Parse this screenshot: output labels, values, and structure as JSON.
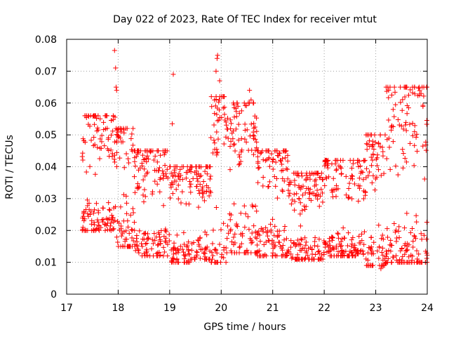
{
  "chart_data": {
    "type": "scatter",
    "title": "Day 022 of 2023, Rate Of TEC Index for receiver mtut",
    "xlabel": "GPS time / hours",
    "ylabel": "ROTI / TECUs",
    "xlim": [
      17,
      24
    ],
    "ylim": [
      0,
      0.08
    ],
    "x_ticks": [
      17,
      18,
      19,
      20,
      21,
      22,
      23,
      24
    ],
    "y_ticks": [
      0,
      0.01,
      0.02,
      0.03,
      0.04,
      0.05,
      0.06,
      0.07,
      0.08
    ],
    "x_tick_labels": [
      "17",
      "18",
      "19",
      "20",
      "21",
      "22",
      "23",
      "24"
    ],
    "y_tick_labels": [
      "0",
      "0.01",
      "0.02",
      "0.03",
      "0.04",
      "0.05",
      "0.06",
      "0.07",
      "0.08"
    ],
    "grid": true,
    "marker": "+",
    "color": "#ff0000",
    "series": [
      {
        "name": "ROTI",
        "segments": [
          {
            "x_start": 17.3,
            "x_end": 17.95,
            "y_low": 0.02,
            "y_high": 0.056,
            "center": 0.032
          },
          {
            "x_start": 17.95,
            "x_end": 18.3,
            "y_low": 0.015,
            "y_high": 0.052,
            "center": 0.035
          },
          {
            "x_start": 18.3,
            "x_end": 19.0,
            "y_low": 0.012,
            "y_high": 0.045,
            "center": 0.024
          },
          {
            "x_start": 19.0,
            "x_end": 19.4,
            "y_low": 0.01,
            "y_high": 0.04,
            "center": 0.02
          },
          {
            "x_start": 19.4,
            "x_end": 19.8,
            "y_low": 0.011,
            "y_high": 0.04,
            "center": 0.022
          },
          {
            "x_start": 19.8,
            "x_end": 20.1,
            "y_low": 0.01,
            "y_high": 0.062,
            "center": 0.03
          },
          {
            "x_start": 20.1,
            "x_end": 20.7,
            "y_low": 0.013,
            "y_high": 0.06,
            "center": 0.035
          },
          {
            "x_start": 20.7,
            "x_end": 21.3,
            "y_low": 0.012,
            "y_high": 0.045,
            "center": 0.027
          },
          {
            "x_start": 21.3,
            "x_end": 22.0,
            "y_low": 0.011,
            "y_high": 0.038,
            "center": 0.022
          },
          {
            "x_start": 22.0,
            "x_end": 22.8,
            "y_low": 0.012,
            "y_high": 0.042,
            "center": 0.023
          },
          {
            "x_start": 22.8,
            "x_end": 23.2,
            "y_low": 0.009,
            "y_high": 0.05,
            "center": 0.024
          },
          {
            "x_start": 23.2,
            "x_end": 24.0,
            "y_low": 0.01,
            "y_high": 0.065,
            "center": 0.028
          }
        ],
        "notable_points": [
          {
            "x": 17.93,
            "y": 0.0765
          },
          {
            "x": 17.95,
            "y": 0.071
          },
          {
            "x": 17.96,
            "y": 0.065
          },
          {
            "x": 17.97,
            "y": 0.064
          },
          {
            "x": 19.07,
            "y": 0.069
          },
          {
            "x": 19.05,
            "y": 0.0535
          },
          {
            "x": 19.93,
            "y": 0.075
          },
          {
            "x": 19.92,
            "y": 0.074
          },
          {
            "x": 19.9,
            "y": 0.07
          },
          {
            "x": 19.97,
            "y": 0.067
          },
          {
            "x": 20.55,
            "y": 0.064
          },
          {
            "x": 20.58,
            "y": 0.061
          },
          {
            "x": 23.25,
            "y": 0.064
          },
          {
            "x": 23.9,
            "y": 0.065
          },
          {
            "x": 23.88,
            "y": 0.063
          },
          {
            "x": 23.1,
            "y": 0.008
          },
          {
            "x": 23.85,
            "y": 0.01
          },
          {
            "x": 19.28,
            "y": 0.01
          }
        ]
      }
    ]
  }
}
